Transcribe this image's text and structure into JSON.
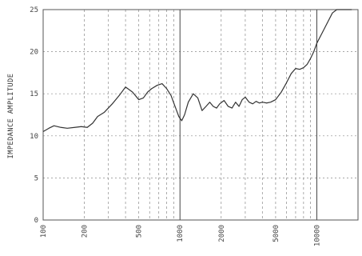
{
  "chart_data": {
    "type": "line",
    "title": "",
    "xlabel": "",
    "ylabel": "IMPEDANCE AMPLITUDE",
    "xscale": "log",
    "xlim": [
      100,
      20000
    ],
    "ylim": [
      0,
      25
    ],
    "grid": true,
    "x_ticks": [
      100,
      200,
      500,
      1000,
      2000,
      5000,
      10000
    ],
    "x_tick_labels": [
      "100",
      "200",
      "500",
      "1000",
      "2000",
      "5000",
      "10000"
    ],
    "y_ticks": [
      0,
      5,
      10,
      15,
      20,
      25
    ],
    "y_tick_labels": [
      "0",
      "5",
      "10",
      "15",
      "20",
      "25"
    ],
    "series": [
      {
        "color": "#333333",
        "x": [
          100,
          110,
          120,
          135,
          150,
          170,
          190,
          210,
          230,
          250,
          280,
          320,
          360,
          400,
          450,
          500,
          540,
          580,
          620,
          680,
          740,
          800,
          860,
          920,
          980,
          1030,
          1080,
          1150,
          1250,
          1350,
          1450,
          1550,
          1650,
          1750,
          1850,
          1950,
          2100,
          2250,
          2400,
          2550,
          2700,
          2850,
          3000,
          3200,
          3400,
          3600,
          3800,
          4000,
          4300,
          4600,
          5000,
          5500,
          6000,
          6500,
          7000,
          7500,
          8000,
          8500,
          9000,
          9500,
          10000,
          11000,
          12000,
          13000,
          14000,
          15000,
          16500,
          18000
        ],
        "y": [
          10.5,
          10.9,
          11.2,
          11.0,
          10.9,
          11.0,
          11.1,
          11.0,
          11.5,
          12.3,
          12.8,
          13.8,
          14.8,
          15.8,
          15.2,
          14.3,
          14.5,
          15.2,
          15.6,
          16.0,
          16.2,
          15.6,
          14.8,
          13.5,
          12.3,
          11.8,
          12.5,
          14.0,
          15.0,
          14.5,
          13.0,
          13.5,
          14.0,
          13.5,
          13.3,
          13.8,
          14.2,
          13.5,
          13.3,
          14.0,
          13.5,
          14.3,
          14.6,
          14.0,
          13.8,
          14.1,
          13.9,
          14.0,
          13.9,
          14.0,
          14.3,
          15.2,
          16.3,
          17.4,
          18.0,
          17.9,
          18.1,
          18.5,
          19.2,
          20.0,
          21.0,
          22.3,
          23.5,
          24.6,
          25.0,
          25.0,
          25.0,
          25.0
        ]
      }
    ]
  }
}
